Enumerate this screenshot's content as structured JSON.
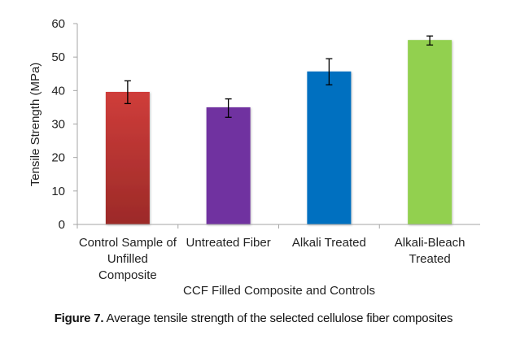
{
  "chart_data": {
    "type": "bar",
    "title": "",
    "xlabel": "CCF Filled Composite and Controls",
    "ylabel": "Tensile Strength (MPa)",
    "ylim": [
      0,
      60
    ],
    "yticks": [
      0,
      10,
      20,
      30,
      40,
      50,
      60
    ],
    "grid": false,
    "legend": "none",
    "categories": [
      [
        "Control Sample of",
        "Unfilled",
        "Composite"
      ],
      [
        "Untreated Fiber"
      ],
      [
        "Alkali Treated"
      ],
      [
        "Alkali-Bleach",
        "Treated"
      ]
    ],
    "values": [
      39.6,
      35.0,
      45.7,
      55.1
    ],
    "error_low": [
      36.1,
      32.0,
      41.7,
      53.6
    ],
    "error_high": [
      42.9,
      37.5,
      49.5,
      56.3
    ],
    "colors": [
      [
        "#cf3d3a",
        "#9c2a28"
      ],
      [
        "#7030a0",
        "#7030a0"
      ],
      [
        "#0070c0",
        "#0070c0"
      ],
      [
        "#92d050",
        "#92d050"
      ]
    ],
    "axis_color": "#a6a6a6"
  },
  "caption": {
    "label": "Figure 7.",
    "text": " Average tensile strength of the selected cellulose fiber composites"
  }
}
